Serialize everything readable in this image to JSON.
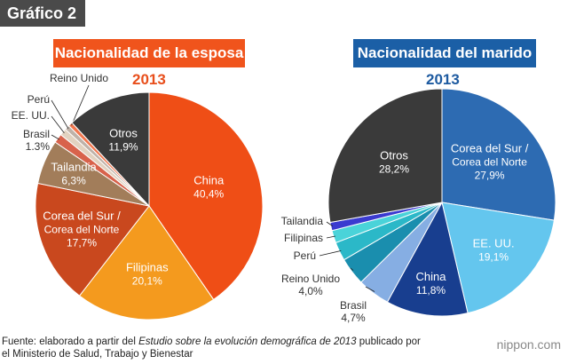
{
  "figure_label": "Gráfico 2",
  "source": {
    "prefix": "Fuente: elaborado a partir del ",
    "title": "Estudio sobre la evolución demográfica de 2013",
    "suffix": " publicado por",
    "line2": "el Ministerio de Salud, Trabajo y Bienestar"
  },
  "brand": "nippon.com",
  "colors": {
    "wife_header": "#f0541c",
    "husband_header": "#1b5fa6",
    "year_wife": "#e84e1b",
    "year_husband": "#1d5aa0"
  },
  "chart_data": [
    {
      "type": "pie",
      "title": "Nacionalidad de la esposa",
      "year": "2013",
      "slices": [
        {
          "name": "China",
          "label": [
            "China",
            "40,4%"
          ],
          "value": 40.4,
          "color": "#ef4e16"
        },
        {
          "name": "Filipinas",
          "label": [
            "Filipinas",
            "20,1%"
          ],
          "value": 20.1,
          "color": "#f49a1e"
        },
        {
          "name": "Corea del Sur / Corea del Norte",
          "label": [
            "Corea del Sur /",
            "Corea del Norte",
            "17,7%"
          ],
          "value": 17.7,
          "color": "#c9481e"
        },
        {
          "name": "Tailandia",
          "label": [
            "Tailandia",
            "6,3%"
          ],
          "value": 6.3,
          "color": "#a27d5a"
        },
        {
          "name": "Brasil",
          "label": [
            "Brasil",
            "1.3%"
          ],
          "value": 1.3,
          "color": "#d8624b"
        },
        {
          "name": "EE. UU.",
          "label": [
            "EE. UU."
          ],
          "value": 1.0,
          "color": "#e2d2c0"
        },
        {
          "name": "Perú",
          "label": [
            "Perú"
          ],
          "value": 0.7,
          "color": "#bfb2a8"
        },
        {
          "name": "Reino Unido",
          "label": [
            "Reino Unido"
          ],
          "value": 0.6,
          "color": "#f2774f"
        },
        {
          "name": "Otros",
          "label": [
            "Otros",
            "11,9%"
          ],
          "value": 11.9,
          "color": "#3a3a3a"
        }
      ]
    },
    {
      "type": "pie",
      "title": "Nacionalidad del marido",
      "year": "2013",
      "slices": [
        {
          "name": "Corea del Sur / Corea del Norte",
          "label": [
            "Corea del Sur /",
            "Corea del Norte",
            "27,9%"
          ],
          "value": 27.9,
          "color": "#2d6bb2"
        },
        {
          "name": "EE. UU.",
          "label": [
            "EE. UU.",
            "19,1%"
          ],
          "value": 19.1,
          "color": "#64c6ee"
        },
        {
          "name": "China",
          "label": [
            "China",
            "11,8%"
          ],
          "value": 11.8,
          "color": "#183e8f"
        },
        {
          "name": "Brasil",
          "label": [
            "Brasil",
            "4,7%"
          ],
          "value": 4.7,
          "color": "#86aee3"
        },
        {
          "name": "Reino Unido",
          "label": [
            "Reino Unido",
            "4,0%"
          ],
          "value": 4.0,
          "color": "#1a8eae"
        },
        {
          "name": "Perú",
          "label": [
            "Perú"
          ],
          "value": 2.7,
          "color": "#2bb8c8"
        },
        {
          "name": "Filipinas",
          "label": [
            "Filipinas"
          ],
          "value": 1.8,
          "color": "#4ad3d9"
        },
        {
          "name": "Tailandia",
          "label": [
            "Tailandia"
          ],
          "value": 1.2,
          "color": "#3a3ad0"
        },
        {
          "name": "Otros",
          "label": [
            "Otros",
            "28,2%"
          ],
          "value": 28.2,
          "color": "#3a3a3a"
        }
      ]
    }
  ]
}
